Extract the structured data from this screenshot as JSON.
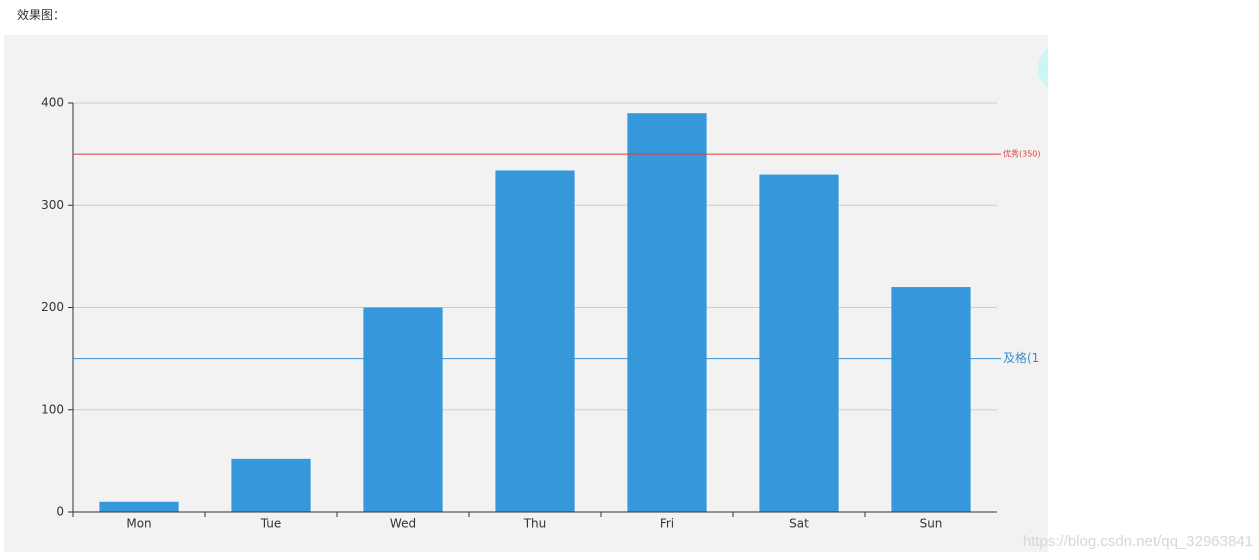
{
  "caption": "效果图：",
  "watermark": "https://blog.csdn.net/qq_32963841",
  "chart_data": {
    "type": "bar",
    "categories": [
      "Mon",
      "Tue",
      "Wed",
      "Thu",
      "Fri",
      "Sat",
      "Sun"
    ],
    "values": [
      10,
      52,
      200,
      334,
      390,
      330,
      220
    ],
    "color": "#3498db",
    "ylim": [
      0,
      400
    ],
    "yticks": [
      0,
      100,
      200,
      300,
      400
    ],
    "grid": true,
    "mark_lines": [
      {
        "label": "优秀(350)",
        "value": 350,
        "color": "#e5393c"
      },
      {
        "label": "及格(1",
        "value": 150,
        "color": "#3a8fd0"
      }
    ]
  }
}
